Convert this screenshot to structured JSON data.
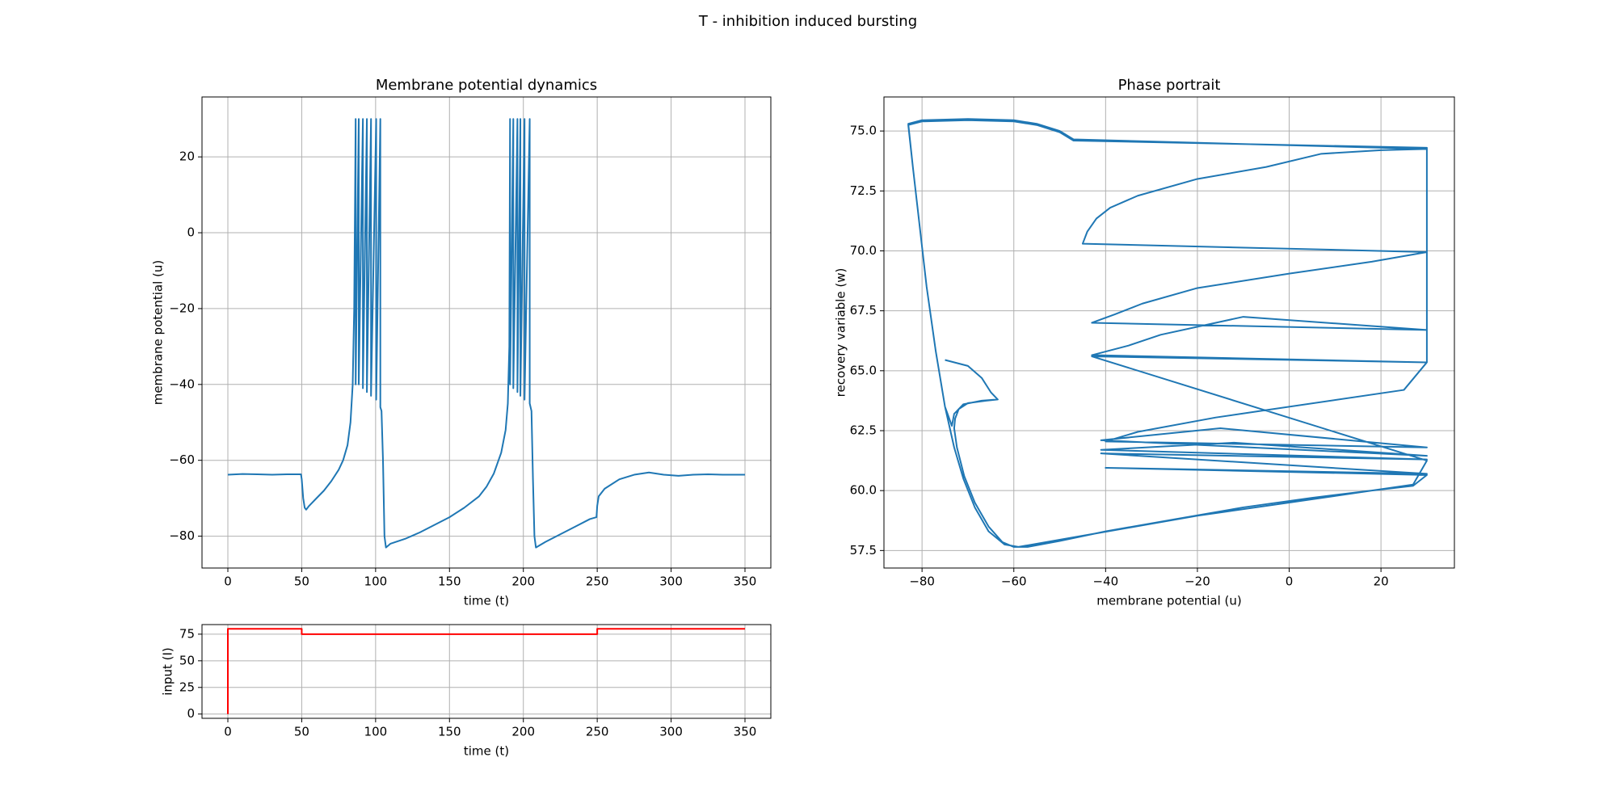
{
  "title": "T - inhibition induced bursting",
  "chart_data": [
    {
      "type": "line",
      "title": "Membrane potential dynamics",
      "xlabel": "time (t)",
      "ylabel": "membrane potential (u)",
      "color": "#1f77b4",
      "grid": true,
      "xlim": [
        -17.5,
        367.5
      ],
      "ylim": [
        -88.4,
        35.8
      ],
      "xticks": [
        0,
        50,
        100,
        150,
        200,
        250,
        300,
        350
      ],
      "yticks": [
        {
          "value": -80,
          "label": "−80"
        },
        {
          "value": -60,
          "label": "−60"
        },
        {
          "value": -40,
          "label": "−40"
        },
        {
          "value": -20,
          "label": "−20"
        },
        0,
        20
      ],
      "x": [
        0,
        10,
        20,
        30,
        40,
        49.5,
        50,
        51,
        52,
        53,
        55,
        60,
        65,
        70,
        75,
        78,
        81,
        83,
        84.5,
        85.5,
        86.5,
        86.5,
        88.6,
        88.6,
        91.4,
        91.4,
        94.1,
        94.1,
        96.9,
        96.9,
        100.4,
        100.4,
        103.2,
        103.2,
        104,
        105,
        106,
        107,
        110,
        120,
        130,
        140,
        150,
        160,
        170,
        175,
        180,
        185,
        188,
        189.5,
        190.5,
        191,
        191,
        193.2,
        193.2,
        196,
        196,
        198,
        198,
        200.8,
        200.8,
        204.3,
        204.3,
        205.5,
        206.5,
        207.5,
        208.5,
        215,
        225,
        235,
        245,
        249.5,
        250,
        251,
        255,
        265,
        275,
        285,
        295,
        305,
        315,
        325,
        335,
        350
      ],
      "values": [
        -63.8,
        -63.6,
        -63.7,
        -63.8,
        -63.7,
        -63.7,
        -65,
        -70,
        -72.5,
        -73,
        -72,
        -70,
        -68,
        -65.5,
        -62.5,
        -60,
        -56,
        -50,
        -40,
        -20,
        30,
        -40,
        30,
        -40,
        30,
        -41,
        30,
        -42,
        30,
        -43,
        30,
        -44,
        30,
        -46,
        -47,
        -60,
        -80,
        -83,
        -82,
        -80.7,
        -79,
        -77,
        -75,
        -72.5,
        -69.5,
        -67,
        -63.5,
        -58,
        -52,
        -45,
        -30,
        30,
        -40,
        30,
        -41,
        30,
        -42,
        30,
        -43,
        30,
        -44,
        30,
        -45,
        -47,
        -65,
        -80,
        -83,
        -81.5,
        -79.5,
        -77.5,
        -75.5,
        -75,
        -72,
        -69.5,
        -67.5,
        -65,
        -63.8,
        -63.2,
        -63.8,
        -64.1,
        -63.8,
        -63.7,
        -63.8,
        -63.8
      ]
    },
    {
      "type": "line",
      "xlabel": "time (t)",
      "ylabel": "input (I)",
      "color": "#ff0000",
      "grid": true,
      "xlim": [
        -17.5,
        367.5
      ],
      "ylim": [
        -4,
        84
      ],
      "xticks": [
        0,
        50,
        100,
        150,
        200,
        250,
        300,
        350
      ],
      "yticks": [
        0,
        25,
        50,
        75
      ],
      "x": [
        0,
        0,
        50,
        50,
        250,
        250,
        350
      ],
      "values": [
        0,
        80,
        80,
        75,
        75,
        80,
        80
      ]
    },
    {
      "type": "line",
      "title": "Phase portrait",
      "xlabel": "membrane potential (u)",
      "ylabel": "recovery variable (w)",
      "color": "#1f77b4",
      "grid": true,
      "xlim": [
        -88.3,
        36
      ],
      "ylim": [
        56.77,
        76.42
      ],
      "xticks": [
        {
          "value": -80,
          "label": "−80"
        },
        {
          "value": -60,
          "label": "−60"
        },
        {
          "value": -40,
          "label": "−40"
        },
        {
          "value": -20,
          "label": "−20"
        },
        0,
        20
      ],
      "yticks": [
        {
          "value": 57.5,
          "label": "57.5"
        },
        {
          "value": 60,
          "label": "60.0"
        },
        {
          "value": 62.5,
          "label": "62.5"
        },
        {
          "value": 65,
          "label": "65.0"
        },
        {
          "value": 67.5,
          "label": "67.5"
        },
        {
          "value": 70,
          "label": "70.0"
        },
        {
          "value": 72.5,
          "label": "72.5"
        },
        {
          "value": 75,
          "label": "75.0"
        }
      ],
      "x": [
        -75,
        -70,
        -67,
        -65,
        -63.5,
        -66,
        -70,
        -72,
        -72.8,
        -73,
        -72.4,
        -70.8,
        -68.5,
        -65.5,
        -62.5,
        -60,
        -57,
        -50,
        -40,
        -25,
        -10,
        5,
        18,
        27,
        30,
        -40,
        30,
        -41,
        30,
        -41,
        -12,
        30,
        -41,
        -15,
        30,
        -40,
        -33,
        -16,
        25,
        30,
        30,
        -47,
        -50,
        -55,
        -60,
        -70,
        -80,
        -83,
        -82,
        -80.5,
        -79,
        -77,
        -75,
        -73,
        -71,
        -68.5,
        -65.5,
        -62,
        -59,
        -50,
        -35,
        -20,
        0,
        18,
        27,
        30,
        -43,
        30,
        -43,
        -35,
        -28,
        -10,
        30,
        -43,
        -38,
        -32,
        -20,
        0,
        18,
        30,
        -45,
        -44,
        -42,
        -39,
        -33,
        -20,
        -5,
        7,
        20,
        30,
        -47,
        -50,
        -55,
        -60,
        -70,
        -80,
        -83,
        -82,
        -80.5,
        -79,
        -77,
        -75,
        -73.5,
        -73,
        -71,
        -67,
        -63.5
      ],
      "values": [
        65.45,
        65.2,
        64.7,
        64.1,
        63.8,
        63.75,
        63.65,
        63.4,
        63.0,
        62.6,
        61.8,
        60.6,
        59.5,
        58.5,
        57.85,
        57.65,
        57.65,
        57.9,
        58.3,
        58.8,
        59.3,
        59.7,
        60.0,
        60.2,
        60.65,
        60.95,
        60.7,
        61.55,
        61.3,
        61.7,
        62.0,
        61.45,
        62.1,
        62.6,
        61.8,
        62.05,
        62.45,
        63.05,
        64.2,
        65.35,
        74.3,
        74.6,
        74.95,
        75.25,
        75.4,
        75.45,
        75.4,
        75.25,
        73.5,
        71,
        68.5,
        65.8,
        63.5,
        61.8,
        60.5,
        59.3,
        58.3,
        57.75,
        57.65,
        57.95,
        58.45,
        58.95,
        59.5,
        60.0,
        60.25,
        61.25,
        65.6,
        65.35,
        65.65,
        66.05,
        66.5,
        67.25,
        66.7,
        67.0,
        67.35,
        67.8,
        68.45,
        69.05,
        69.55,
        69.95,
        70.3,
        70.8,
        71.35,
        71.8,
        72.3,
        73.0,
        73.5,
        74.05,
        74.2,
        74.25,
        74.65,
        75.0,
        75.3,
        75.45,
        75.5,
        75.45,
        75.3,
        73.5,
        71,
        68.5,
        65.8,
        63.5,
        62.7,
        63.2,
        63.6,
        63.75,
        63.8
      ]
    }
  ]
}
